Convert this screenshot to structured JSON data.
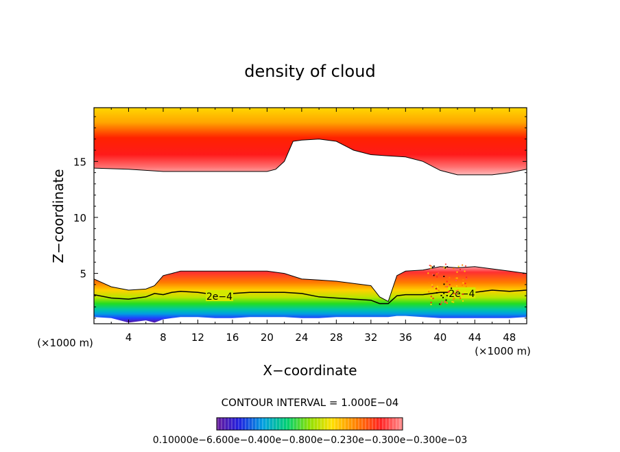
{
  "chart_data": {
    "type": "heatmap",
    "title": "density of cloud",
    "xlabel": "X−coordinate",
    "ylabel": "Z−coordinate",
    "x_unit_left": "(×1000 m)",
    "x_unit_right": "(×1000 m)",
    "xlim": [
      0,
      50
    ],
    "ylim": [
      0.5,
      19.8
    ],
    "x_ticks": [
      4,
      8,
      12,
      16,
      20,
      24,
      28,
      32,
      36,
      40,
      44,
      48
    ],
    "x_tick_labels": [
      "4",
      "8",
      "12",
      "16",
      "20",
      "24",
      "28",
      "32",
      "36",
      "40",
      "44",
      "48"
    ],
    "y_ticks": [
      5,
      10,
      15
    ],
    "y_tick_labels": [
      "5",
      "10",
      "15"
    ],
    "contour_interval_text": "CONTOUR INTERVAL = 1.000E−04",
    "contour_labels": [
      {
        "text": "2e−4",
        "x": 14.5,
        "y": 2.95
      },
      {
        "text": "2e−4",
        "x": 42.5,
        "y": 3.2
      }
    ],
    "colorbar_text": "0.10000e−6.600e−0.400e−0.800e−0.230e−0.300e−0.300e−03",
    "upper_layer": {
      "x": [
        0,
        4,
        8,
        12,
        16,
        18,
        20,
        21,
        22,
        23,
        24,
        26,
        28,
        30,
        32,
        34,
        36,
        38,
        40,
        42,
        44,
        46,
        48,
        50
      ],
      "bottom": [
        14.4,
        14.3,
        14.1,
        14.1,
        14.1,
        14.1,
        14.1,
        14.3,
        15.0,
        16.8,
        16.9,
        17.0,
        16.8,
        16.0,
        15.6,
        15.5,
        15.4,
        15.0,
        14.2,
        13.8,
        13.8,
        13.8,
        14.0,
        14.3
      ]
    },
    "lower_layer": {
      "x": [
        0,
        2,
        4,
        6,
        7,
        8,
        9,
        10,
        12,
        14,
        16,
        18,
        20,
        22,
        24,
        26,
        28,
        30,
        32,
        33,
        34,
        35,
        36,
        38,
        40,
        42,
        44,
        46,
        48,
        50
      ],
      "top": [
        4.5,
        3.8,
        3.5,
        3.6,
        3.9,
        4.8,
        5.0,
        5.2,
        5.2,
        5.2,
        5.2,
        5.2,
        5.2,
        5.0,
        4.5,
        4.4,
        4.3,
        4.1,
        3.9,
        2.9,
        2.5,
        4.8,
        5.2,
        5.3,
        5.6,
        5.5,
        5.6,
        5.4,
        5.2,
        5.0
      ],
      "bottom": [
        1.1,
        1.0,
        0.6,
        0.8,
        0.6,
        0.9,
        1.0,
        1.1,
        1.1,
        1.0,
        1.0,
        1.1,
        1.1,
        1.1,
        1.0,
        1.0,
        1.1,
        1.1,
        1.1,
        1.1,
        1.1,
        1.2,
        1.2,
        1.1,
        1.0,
        1.0,
        1.0,
        1.0,
        1.0,
        1.1
      ],
      "contour_2e4": [
        3.1,
        2.8,
        2.7,
        2.9,
        3.2,
        3.1,
        3.3,
        3.4,
        3.3,
        3.1,
        3.2,
        3.3,
        3.3,
        3.3,
        3.2,
        2.9,
        2.8,
        2.7,
        2.6,
        2.3,
        2.3,
        3.0,
        3.1,
        3.1,
        3.3,
        3.3,
        3.3,
        3.5,
        3.4,
        3.5
      ]
    }
  }
}
